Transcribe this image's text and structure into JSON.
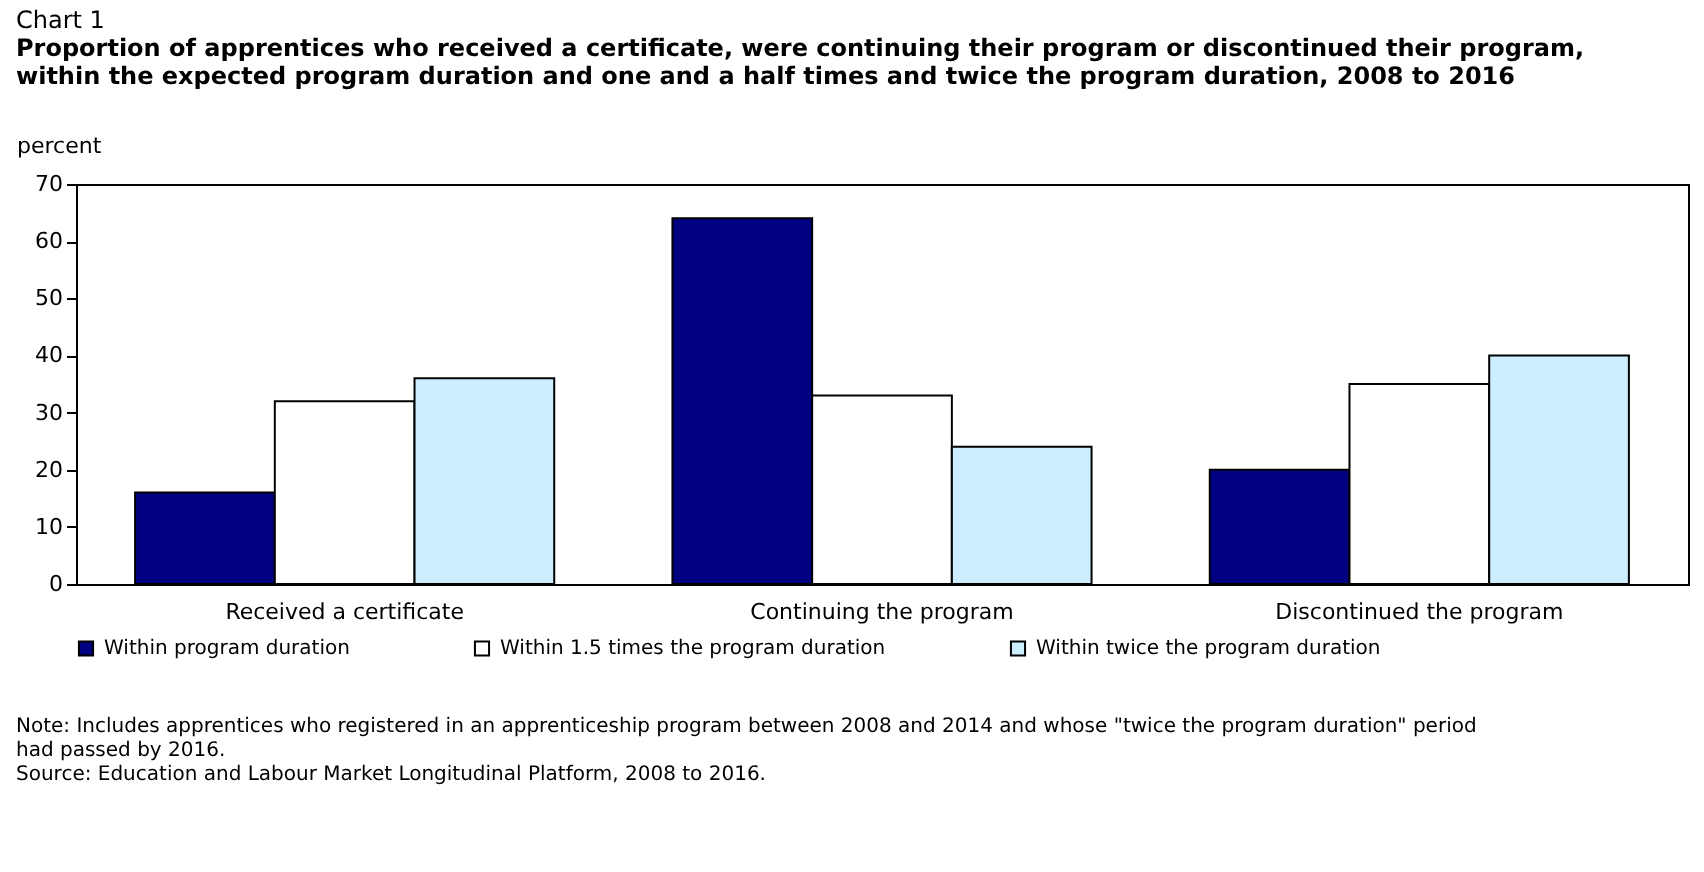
{
  "chart_data": {
    "type": "bar",
    "title": "Chart 1",
    "subtitle": "Proportion of apprentices who received a certificate, were continuing their program or discontinued their program, within the expected program duration and one and a half times and twice the program duration, 2008 to 2016",
    "ylabel": "percent",
    "categories": [
      "Received a certificate",
      "Continuing the program",
      "Discontinued the program"
    ],
    "series": [
      {
        "name": "Within program duration",
        "color": "#000080",
        "values": [
          16,
          64,
          20
        ]
      },
      {
        "name": "Within 1.5 times the program duration",
        "color": "#ffffff",
        "values": [
          32,
          33,
          35
        ]
      },
      {
        "name": "Within twice the program duration",
        "color": "#cceeff",
        "values": [
          36,
          24,
          40
        ]
      }
    ],
    "ylim": [
      0,
      70
    ],
    "yticks": [
      0,
      10,
      20,
      30,
      40,
      50,
      60,
      70
    ],
    "grid": false,
    "legend": "bottom",
    "annotations": [
      "Note: Includes apprentices who registered in an apprenticeship program between 2008 and 2014 and whose \"twice the program duration\" period had passed by 2016.",
      "Source: Education and Labour Market Longitudinal Platform, 2008 to 2016."
    ]
  }
}
